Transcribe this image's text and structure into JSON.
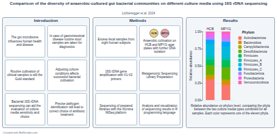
{
  "header": {
    "title": "Comparison of the diversity of anaerobic-cultured gut bacterial communities on different culture media using 16S rDNA sequencing",
    "subtitle": "Lichtenegger et al. 2024"
  },
  "introduction": {
    "title": "Introduction",
    "boxes": [
      "The gut microbiome influences human health and disease",
      "In case of gastrointestinal disease routine stool samples are taken for diagnostics",
      "Routine cultivation of clinical samples is still the Gold standard",
      "Adjusting culture conditions affects successful bacterial cultivation",
      "Bacterial 16S rDNA sequencing can aid the evaluation of culture media sensitivity and choice",
      "Precise pathogen identification will lead to correct choice of antibiotic treatment"
    ]
  },
  "methods": {
    "title": "Methods",
    "steps": [
      {
        "text": "Excess fecal samples from eight human subjects"
      },
      {
        "plates": [
          "HCB",
          "MPYG"
        ],
        "text": "Anaerobic cultivation on HCB and MPYG agar plates with further DNA isolation"
      },
      {
        "text": "16S rDNA gene amplification with V1-V2 primers"
      },
      {
        "text": "Metagenomic Sequencing Library Preparation"
      },
      {
        "text": "Sequencing of prepared libraries with the Illumina MiSeq platform"
      },
      {
        "text": "Analysis and visualization of sequencing results in R programming language"
      }
    ]
  },
  "results": {
    "title": "Results",
    "caption": "Relative abundance on phylum level, comparing the phyla between the two culture media types combined for all samples. Each color represents one of the eleven phyla."
  },
  "chart_data": {
    "type": "bar",
    "stacked": true,
    "categories": [
      "HCB",
      "MPYG"
    ],
    "y_label": "Relative abundance",
    "legend_title": "Phylum",
    "legend": "right",
    "grid": true,
    "ylim": [
      0,
      1
    ],
    "yticks": [
      {
        "value": 0,
        "label": "0.00"
      },
      {
        "value": 0.25,
        "label": "0.25"
      },
      {
        "value": 0.5,
        "label": "0.50"
      },
      {
        "value": 0.75,
        "label": "0.75"
      },
      {
        "value": 1,
        "label": "1.00"
      }
    ],
    "series": [
      {
        "name": "Actinobacteriota",
        "color": "#F8766D",
        "values": [
          0.3,
          0.22
        ]
      },
      {
        "name": "Bacteroidota",
        "color": "#DB8E00",
        "values": [
          0.04,
          0.05
        ]
      },
      {
        "name": "Campylobacterota",
        "color": "#AEA200",
        "values": [
          0.03,
          0.03
        ]
      },
      {
        "name": "Desulfobacterota",
        "color": "#64B200",
        "values": [
          0.14,
          0.18
        ]
      },
      {
        "name": "Firmicutes",
        "color": "#00BD5C",
        "values": [
          0.08,
          0.1
        ]
      },
      {
        "name": "Firmicutes_A",
        "color": "#00C1A7",
        "values": [
          0.05,
          0.04
        ]
      },
      {
        "name": "Firmicutes_B",
        "color": "#00BADE",
        "values": [
          0.18,
          0.16
        ]
      },
      {
        "name": "Firmicutes_C",
        "color": "#00A6FF",
        "values": [
          0.06,
          0.07
        ]
      },
      {
        "name": "Fusobacteriota",
        "color": "#B385FF",
        "values": [
          0.04,
          0.05
        ]
      },
      {
        "name": "Proteobacteria",
        "color": "#EF67EB",
        "values": [
          0.05,
          0.06
        ]
      },
      {
        "name": "Verrucomicrobiota",
        "color": "#FF63B6",
        "values": [
          0.03,
          0.04
        ]
      }
    ]
  },
  "footer": "Created with BioRender.com"
}
